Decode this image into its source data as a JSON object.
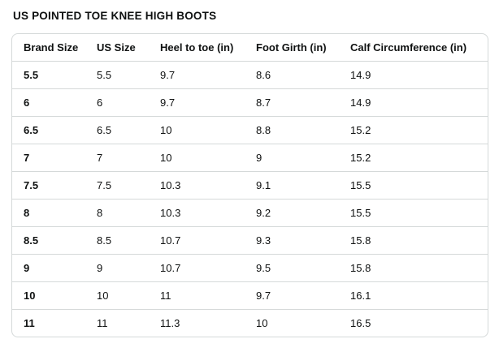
{
  "page": {
    "title": "US POINTED TOE KNEE HIGH BOOTS"
  },
  "colors": {
    "text": "#0F1111",
    "border": "#D5D9D9",
    "background": "#FFFFFF"
  },
  "table": {
    "columns": [
      "Brand Size",
      "US Size",
      "Heel to toe (in)",
      "Foot Girth (in)",
      "Calf Circumference (in)"
    ],
    "rows": [
      [
        "5.5",
        "5.5",
        "9.7",
        "8.6",
        "14.9"
      ],
      [
        "6",
        "6",
        "9.7",
        "8.7",
        "14.9"
      ],
      [
        "6.5",
        "6.5",
        "10",
        "8.8",
        "15.2"
      ],
      [
        "7",
        "7",
        "10",
        "9",
        "15.2"
      ],
      [
        "7.5",
        "7.5",
        "10.3",
        "9.1",
        "15.5"
      ],
      [
        "8",
        "8",
        "10.3",
        "9.2",
        "15.5"
      ],
      [
        "8.5",
        "8.5",
        "10.7",
        "9.3",
        "15.8"
      ],
      [
        "9",
        "9",
        "10.7",
        "9.5",
        "15.8"
      ],
      [
        "10",
        "10",
        "11",
        "9.7",
        "16.1"
      ],
      [
        "11",
        "11",
        "11.3",
        "10",
        "16.5"
      ]
    ]
  }
}
